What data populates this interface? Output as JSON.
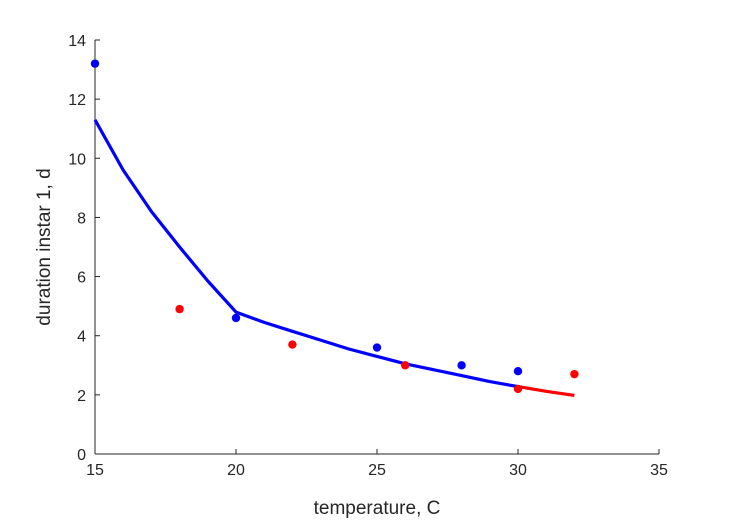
{
  "chart_data": {
    "type": "scatter",
    "title": "",
    "xlabel": "temperature, C",
    "ylabel": "duration instar 1, d",
    "xlim": [
      15,
      35
    ],
    "ylim": [
      0,
      14
    ],
    "xticks": [
      "15",
      "20",
      "25",
      "30",
      "35"
    ],
    "yticks": [
      "0",
      "2",
      "4",
      "6",
      "8",
      "10",
      "12",
      "14"
    ],
    "grid": false,
    "legend": "none",
    "series": [
      {
        "kind": "points",
        "color": "#0000ff",
        "x": [
          15,
          20,
          25,
          28,
          30
        ],
        "y": [
          13.2,
          4.6,
          3.6,
          3.0,
          2.8
        ]
      },
      {
        "kind": "points",
        "color": "#ff0000",
        "x": [
          18,
          22,
          26,
          30,
          32
        ],
        "y": [
          4.9,
          3.7,
          3.0,
          2.2,
          2.7
        ]
      },
      {
        "kind": "line",
        "color": "#0000ff",
        "x": [
          15,
          16,
          17,
          18,
          19,
          20,
          21,
          22,
          23,
          24,
          25,
          26,
          27,
          28,
          29,
          30
        ],
        "y": [
          11.3,
          9.6,
          8.2,
          7.0,
          5.85,
          4.8,
          4.45,
          4.15,
          3.85,
          3.55,
          3.3,
          3.05,
          2.85,
          2.65,
          2.45,
          2.28
        ]
      },
      {
        "kind": "line",
        "color": "#ff0000",
        "x": [
          30,
          31,
          32
        ],
        "y": [
          2.28,
          2.12,
          1.98
        ]
      }
    ]
  }
}
